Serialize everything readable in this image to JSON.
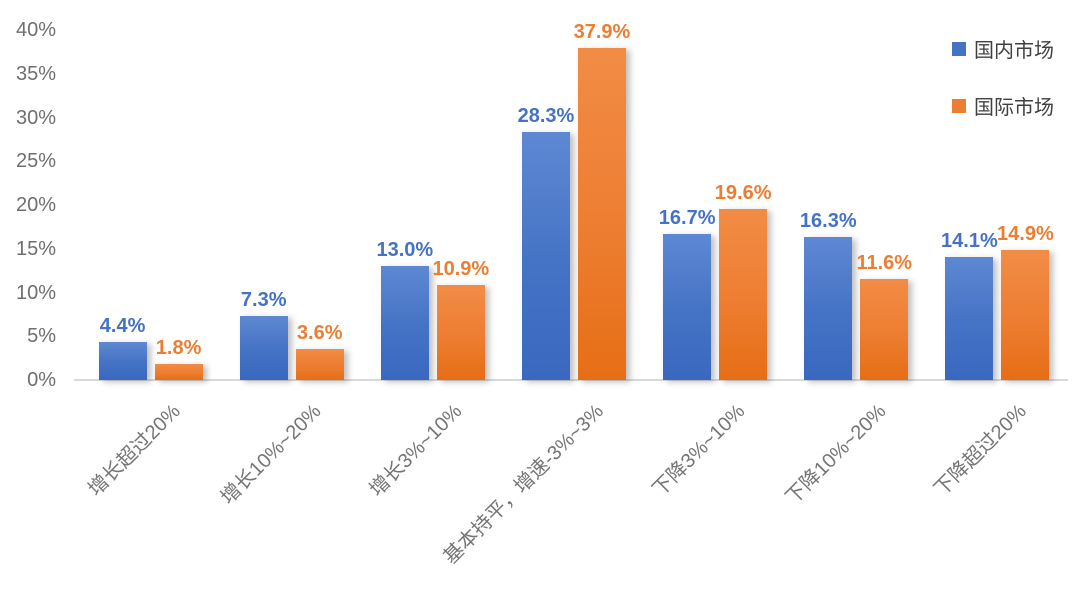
{
  "chart_data": {
    "type": "bar",
    "title": "",
    "xlabel": "",
    "ylabel": "",
    "categories": [
      "增长超过20%",
      "增长10%~20%",
      "增长3%~10%",
      "基本持平，增速-3%~3%",
      "下降3%~10%",
      "下降10%~20%",
      "下降超过20%"
    ],
    "series": [
      {
        "name": "国内市场",
        "color": "#4472C4",
        "color_top": "#5E88D3",
        "color_bottom": "#3A68C0",
        "values": [
          4.4,
          7.3,
          13.0,
          28.3,
          16.7,
          16.3,
          14.1
        ]
      },
      {
        "name": "国际市场",
        "color": "#ED7D31",
        "color_top": "#F28C45",
        "color_bottom": "#E66E15",
        "values": [
          1.8,
          3.6,
          10.9,
          37.9,
          19.6,
          11.6,
          14.9
        ]
      }
    ],
    "value_labels": [
      [
        "4.4%",
        "7.3%",
        "13.0%",
        "28.3%",
        "16.7%",
        "16.3%",
        "14.1%"
      ],
      [
        "1.8%",
        "3.6%",
        "10.9%",
        "37.9%",
        "19.6%",
        "11.6%",
        "14.9%"
      ]
    ],
    "ylim": [
      0,
      40
    ],
    "yticks": [
      "0%",
      "5%",
      "10%",
      "15%",
      "20%",
      "25%",
      "30%",
      "35%",
      "40%"
    ],
    "grid": false,
    "legend_position": "top-right",
    "value_label_format": "{v}%"
  },
  "colors": {
    "axis_line": "#d9d9d9",
    "y_tick_text": "#6f6f6f",
    "x_label_text": "#757575",
    "legend_text": "#404040",
    "background": "#ffffff"
  }
}
